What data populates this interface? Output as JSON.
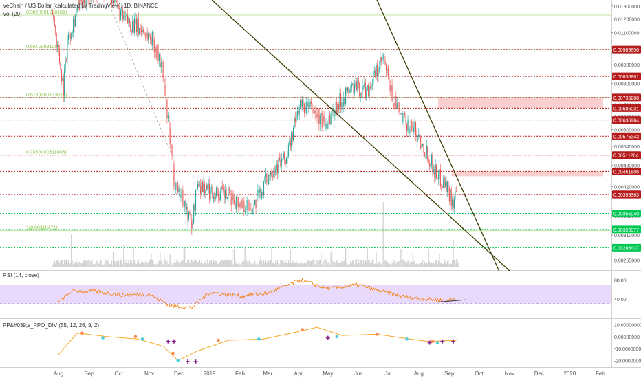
{
  "header": {
    "symbol_title": "VeChain / US Dollar (calculated by TradingView), 1D, BINANCE",
    "vol_label": "Vol (20)",
    "rsi_label": "RSI (14, close)",
    "ppo_label": "PP&#039;s_PPO_DIV (55, 12, 26, 9, 2)"
  },
  "colors": {
    "up": "#26a69a",
    "down": "#ef5350",
    "red_level": "#b71c1c",
    "green_level": "#00c853",
    "fib": "#8bc34a",
    "trendline": "#3a3a00",
    "rsi_line": "#f57c00",
    "rsi_band": "#e9d9fb",
    "ppo_line": "#f5a623",
    "ppo_cross": "#8e2b8e",
    "zone": "#f8c7c7"
  },
  "chart_data": [
    {
      "type": "candlestick",
      "title": "VeChain / US Dollar (calculated by TradingView), 1D, BINANCE",
      "yscale": "log",
      "ylim": [
        0.0025,
        0.0135
      ],
      "x_ticks": [
        "Aug",
        "Sep",
        "Oct",
        "Nov",
        "Dec",
        "2019",
        "Feb",
        "Mar",
        "Apr",
        "May",
        "Jun",
        "Jul",
        "Aug",
        "Sep",
        "Oct",
        "Nov",
        "Dec",
        "2020",
        "Feb"
      ],
      "y_ticks": [
        0.013,
        0.012,
        0.011,
        0.01,
        0.009,
        0.008,
        0.007,
        0.0065,
        0.006,
        0.0054,
        0.0048,
        0.0042,
        0.0035,
        0.0031,
        0.00265
      ],
      "y_tick_labels": [
        "0.01300000",
        "0.01200000",
        "0.01100000",
        "0.01000000",
        "0.00900000",
        "0.00800000",
        "0.00700000",
        "0.00650000",
        "0.00600000",
        "0.00540000",
        "0.00480000",
        "0.00420000",
        "0.00350000",
        "0.00310000",
        "0.00265000"
      ],
      "fib_levels": [
        {
          "label": "0.382(0.01228181)",
          "value": 0.01228181
        },
        {
          "label": "0.5(0.00991057)",
          "value": 0.00991057
        },
        {
          "label": "0.618(0.00733628)",
          "value": 0.00733628
        },
        {
          "label": "0.786(0.00511806)",
          "value": 0.00511806
        },
        {
          "label": "1(0.00318471)",
          "value": 0.00318471
        }
      ],
      "red_levels": [
        {
          "label": "0.00989856",
          "value": 0.00989856
        },
        {
          "label": "0.00836801",
          "value": 0.00836801
        },
        {
          "label": "0.00733288",
          "value": 0.00733288
        },
        {
          "label": "0.00686031",
          "value": 0.00686031
        },
        {
          "label": "0.00636984",
          "value": 0.00636984
        },
        {
          "label": "0.00575343",
          "value": 0.00575343
        },
        {
          "label": "0.00511204",
          "value": 0.00511204
        },
        {
          "label": "0.00461806",
          "value": 0.00461806
        },
        {
          "label": "0.00399926",
          "value": 0.00399926
        },
        {
          "label": "0.00399363",
          "value": 0.00399363
        }
      ],
      "green_levels": [
        {
          "label": "0.00355040",
          "value": 0.0035504
        },
        {
          "label": "0.00320977",
          "value": 0.00320977
        },
        {
          "label": "0.00286437",
          "value": 0.00286437
        }
      ],
      "price_path": [
        {
          "date": "2018-07-26",
          "close": 0.0125
        },
        {
          "date": "2018-08-06",
          "close": 0.0078
        },
        {
          "date": "2018-08-10",
          "close": 0.0105
        },
        {
          "date": "2018-08-20",
          "close": 0.0128
        },
        {
          "date": "2018-09-05",
          "close": 0.0145
        },
        {
          "date": "2018-09-25",
          "close": 0.0138
        },
        {
          "date": "2018-10-05",
          "close": 0.012
        },
        {
          "date": "2018-10-25",
          "close": 0.0112
        },
        {
          "date": "2018-11-05",
          "close": 0.0105
        },
        {
          "date": "2018-11-14",
          "close": 0.0088
        },
        {
          "date": "2018-11-20",
          "close": 0.0062
        },
        {
          "date": "2018-11-26",
          "close": 0.0044
        },
        {
          "date": "2018-12-05",
          "close": 0.0039
        },
        {
          "date": "2018-12-14",
          "close": 0.0033
        },
        {
          "date": "2018-12-20",
          "close": 0.0043
        },
        {
          "date": "2018-12-30",
          "close": 0.0041
        },
        {
          "date": "2019-01-15",
          "close": 0.004
        },
        {
          "date": "2019-02-01",
          "close": 0.0038
        },
        {
          "date": "2019-02-15",
          "close": 0.0037
        },
        {
          "date": "2019-03-05",
          "close": 0.0047
        },
        {
          "date": "2019-03-20",
          "close": 0.005
        },
        {
          "date": "2019-04-02",
          "close": 0.007
        },
        {
          "date": "2019-04-15",
          "close": 0.0068
        },
        {
          "date": "2019-04-28",
          "close": 0.0062
        },
        {
          "date": "2019-05-10",
          "close": 0.007
        },
        {
          "date": "2019-05-25",
          "close": 0.0078
        },
        {
          "date": "2019-06-10",
          "close": 0.0077
        },
        {
          "date": "2019-06-26",
          "close": 0.0093
        },
        {
          "date": "2019-07-05",
          "close": 0.0074
        },
        {
          "date": "2019-07-15",
          "close": 0.0064
        },
        {
          "date": "2019-07-28",
          "close": 0.006
        },
        {
          "date": "2019-08-08",
          "close": 0.0053
        },
        {
          "date": "2019-08-20",
          "close": 0.0045
        },
        {
          "date": "2019-08-28",
          "close": 0.0043
        },
        {
          "date": "2019-09-05",
          "close": 0.0038
        },
        {
          "date": "2019-09-09",
          "close": 0.004
        }
      ]
    },
    {
      "type": "line",
      "title": "RSI (14, close)",
      "ylim": [
        0,
        100
      ],
      "y_ticks": [
        80,
        40
      ],
      "y_tick_labels": [
        "80.00",
        "40.00"
      ],
      "band": [
        30,
        70
      ],
      "path": [
        {
          "date": "2018-08-01",
          "value": 33
        },
        {
          "date": "2018-08-15",
          "value": 57
        },
        {
          "date": "2018-09-10",
          "value": 55
        },
        {
          "date": "2018-10-05",
          "value": 48
        },
        {
          "date": "2018-11-01",
          "value": 50
        },
        {
          "date": "2018-11-22",
          "value": 26
        },
        {
          "date": "2018-12-14",
          "value": 21
        },
        {
          "date": "2019-01-01",
          "value": 54
        },
        {
          "date": "2019-02-01",
          "value": 46
        },
        {
          "date": "2019-03-01",
          "value": 52
        },
        {
          "date": "2019-04-03",
          "value": 80
        },
        {
          "date": "2019-05-01",
          "value": 62
        },
        {
          "date": "2019-06-01",
          "value": 70
        },
        {
          "date": "2019-06-26",
          "value": 55
        },
        {
          "date": "2019-07-15",
          "value": 45
        },
        {
          "date": "2019-08-05",
          "value": 40
        },
        {
          "date": "2019-08-25",
          "value": 37
        },
        {
          "date": "2019-09-09",
          "value": 40
        }
      ],
      "trend_from": {
        "date": "2019-08-20",
        "value": 33
      },
      "trend_to": {
        "date": "2019-09-18",
        "value": 38
      }
    },
    {
      "type": "line",
      "title": "PP&#039;s_PPO_DIV (55, 12, 26, 9, 2)",
      "ylim": [
        -25,
        15
      ],
      "y_ticks": [
        10,
        0,
        -10,
        -20
      ],
      "y_tick_labels": [
        "10.00000000",
        "0.00000000",
        "-10.00000000",
        "-20.00000000"
      ],
      "path": [
        {
          "date": "2018-08-01",
          "value": -15
        },
        {
          "date": "2018-08-20",
          "value": 3
        },
        {
          "date": "2018-09-20",
          "value": 0
        },
        {
          "date": "2018-10-20",
          "value": -2
        },
        {
          "date": "2018-11-15",
          "value": -8
        },
        {
          "date": "2018-11-30",
          "value": -20
        },
        {
          "date": "2018-12-20",
          "value": -12
        },
        {
          "date": "2019-01-20",
          "value": -3
        },
        {
          "date": "2019-02-25",
          "value": -2
        },
        {
          "date": "2019-03-25",
          "value": 3
        },
        {
          "date": "2019-04-20",
          "value": 8
        },
        {
          "date": "2019-05-15",
          "value": 1
        },
        {
          "date": "2019-06-20",
          "value": 2
        },
        {
          "date": "2019-07-15",
          "value": -1
        },
        {
          "date": "2019-08-10",
          "value": -4
        },
        {
          "date": "2019-09-09",
          "value": -3
        }
      ],
      "orange_dots": [
        {
          "date": "2018-08-25",
          "value": 3
        },
        {
          "date": "2018-10-18",
          "value": 0
        },
        {
          "date": "2018-11-25",
          "value": -14
        },
        {
          "date": "2019-01-10",
          "value": -3
        },
        {
          "date": "2019-04-05",
          "value": 6
        },
        {
          "date": "2019-06-20",
          "value": 2
        },
        {
          "date": "2019-08-15",
          "value": -4
        }
      ],
      "cyan_dots": [
        {
          "date": "2018-09-15",
          "value": -1
        },
        {
          "date": "2018-10-25",
          "value": -2
        },
        {
          "date": "2018-11-30",
          "value": -20
        },
        {
          "date": "2019-02-20",
          "value": -2
        },
        {
          "date": "2019-05-10",
          "value": 0
        },
        {
          "date": "2019-07-20",
          "value": -2
        },
        {
          "date": "2019-08-20",
          "value": -5
        }
      ],
      "cross_markers": [
        {
          "date": "2018-11-20",
          "value": -4
        },
        {
          "date": "2018-11-26",
          "value": -4
        },
        {
          "date": "2018-12-10",
          "value": -21
        },
        {
          "date": "2018-12-18",
          "value": -21
        },
        {
          "date": "2019-05-01",
          "value": -1
        },
        {
          "date": "2019-08-12",
          "value": -5
        },
        {
          "date": "2019-08-25",
          "value": -4
        },
        {
          "date": "2019-09-05",
          "value": -4
        }
      ]
    }
  ]
}
